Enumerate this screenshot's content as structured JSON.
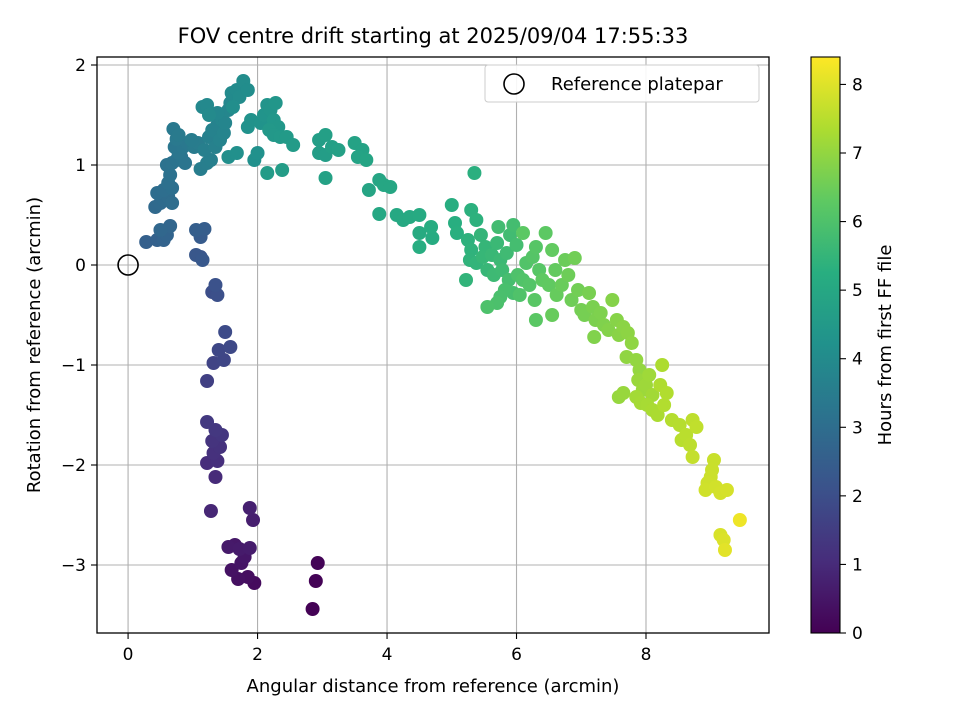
{
  "chart_data": {
    "type": "scatter",
    "title": "FOV centre drift starting at 2025/09/04 17:55:33",
    "xlabel": "Angular distance from reference (arcmin)",
    "ylabel": "Rotation from reference (arcmin)",
    "xlim": [
      -0.48,
      9.9
    ],
    "ylim": [
      -3.68,
      2.08
    ],
    "xticks": [
      "0",
      "2",
      "4",
      "6",
      "8"
    ],
    "yticks": [
      "−3",
      "−2",
      "−1",
      "0",
      "1",
      "2"
    ],
    "grid": true,
    "colorbar": {
      "label": "Hours from first FF file",
      "range": [
        0,
        8.4
      ],
      "ticks": [
        "0",
        "1",
        "2",
        "3",
        "4",
        "5",
        "6",
        "7",
        "8"
      ],
      "colormap": "viridis"
    },
    "legend": {
      "position": "top-right",
      "entries": [
        {
          "name": "Reference platepar",
          "marker": "open-circle"
        }
      ]
    },
    "reference_point": {
      "x": 0,
      "y": 0
    },
    "points": [
      {
        "x": 2.85,
        "y": -3.44,
        "t": 0.02
      },
      {
        "x": 2.9,
        "y": -3.16,
        "t": 0.05
      },
      {
        "x": 2.93,
        "y": -2.98,
        "t": 0.08
      },
      {
        "x": 1.95,
        "y": -3.18,
        "t": 0.25
      },
      {
        "x": 1.85,
        "y": -3.12,
        "t": 0.3
      },
      {
        "x": 1.7,
        "y": -3.14,
        "t": 0.35
      },
      {
        "x": 1.6,
        "y": -3.05,
        "t": 0.4
      },
      {
        "x": 1.75,
        "y": -2.98,
        "t": 0.45
      },
      {
        "x": 1.8,
        "y": -2.92,
        "t": 0.5
      },
      {
        "x": 1.65,
        "y": -2.8,
        "t": 0.55
      },
      {
        "x": 1.55,
        "y": -2.82,
        "t": 0.6
      },
      {
        "x": 1.72,
        "y": -2.84,
        "t": 0.62
      },
      {
        "x": 1.88,
        "y": -2.83,
        "t": 0.65
      },
      {
        "x": 1.93,
        "y": -2.55,
        "t": 0.7
      },
      {
        "x": 1.88,
        "y": -2.43,
        "t": 0.75
      },
      {
        "x": 1.28,
        "y": -2.46,
        "t": 0.9
      },
      {
        "x": 1.35,
        "y": -2.12,
        "t": 1.0
      },
      {
        "x": 1.22,
        "y": -1.98,
        "t": 1.05
      },
      {
        "x": 1.38,
        "y": -1.96,
        "t": 1.1
      },
      {
        "x": 1.32,
        "y": -1.88,
        "t": 1.15
      },
      {
        "x": 1.42,
        "y": -1.82,
        "t": 1.2
      },
      {
        "x": 1.3,
        "y": -1.76,
        "t": 1.25
      },
      {
        "x": 1.45,
        "y": -1.7,
        "t": 1.3
      },
      {
        "x": 1.35,
        "y": -1.65,
        "t": 1.35
      },
      {
        "x": 1.22,
        "y": -1.57,
        "t": 1.4
      },
      {
        "x": 1.22,
        "y": -1.16,
        "t": 1.6
      },
      {
        "x": 1.32,
        "y": -0.98,
        "t": 1.7
      },
      {
        "x": 1.48,
        "y": -0.95,
        "t": 1.75
      },
      {
        "x": 1.4,
        "y": -0.85,
        "t": 1.8
      },
      {
        "x": 1.58,
        "y": -0.82,
        "t": 1.85
      },
      {
        "x": 1.5,
        "y": -0.67,
        "t": 1.9
      },
      {
        "x": 1.3,
        "y": -0.27,
        "t": 2.0
      },
      {
        "x": 1.38,
        "y": -0.3,
        "t": 2.05
      },
      {
        "x": 1.35,
        "y": -0.2,
        "t": 2.1
      },
      {
        "x": 1.12,
        "y": 0.08,
        "t": 2.2
      },
      {
        "x": 1.05,
        "y": 0.1,
        "t": 2.25
      },
      {
        "x": 1.15,
        "y": 0.05,
        "t": 2.3
      },
      {
        "x": 1.12,
        "y": 0.28,
        "t": 2.4
      },
      {
        "x": 1.18,
        "y": 0.36,
        "t": 2.45
      },
      {
        "x": 1.05,
        "y": 0.35,
        "t": 2.5
      },
      {
        "x": 0.28,
        "y": 0.23,
        "t": 2.55
      },
      {
        "x": 0.45,
        "y": 0.25,
        "t": 2.6
      },
      {
        "x": 0.55,
        "y": 0.25,
        "t": 2.65
      },
      {
        "x": 0.6,
        "y": 0.3,
        "t": 2.7
      },
      {
        "x": 0.65,
        "y": 0.39,
        "t": 2.75
      },
      {
        "x": 0.5,
        "y": 0.35,
        "t": 2.78
      },
      {
        "x": 0.42,
        "y": 0.58,
        "t": 2.85
      },
      {
        "x": 0.5,
        "y": 0.62,
        "t": 2.9
      },
      {
        "x": 0.55,
        "y": 0.65,
        "t": 2.92
      },
      {
        "x": 0.62,
        "y": 0.68,
        "t": 2.95
      },
      {
        "x": 0.68,
        "y": 0.62,
        "t": 2.97
      },
      {
        "x": 0.45,
        "y": 0.72,
        "t": 3.0
      },
      {
        "x": 0.55,
        "y": 0.75,
        "t": 3.03
      },
      {
        "x": 0.68,
        "y": 0.77,
        "t": 3.06
      },
      {
        "x": 0.62,
        "y": 0.82,
        "t": 3.1
      },
      {
        "x": 0.65,
        "y": 0.9,
        "t": 3.12
      },
      {
        "x": 0.6,
        "y": 1.0,
        "t": 3.15
      },
      {
        "x": 0.68,
        "y": 1.02,
        "t": 3.18
      },
      {
        "x": 0.75,
        "y": 1.05,
        "t": 3.2
      },
      {
        "x": 0.82,
        "y": 1.08,
        "t": 3.22
      },
      {
        "x": 0.88,
        "y": 1.02,
        "t": 3.25
      },
      {
        "x": 0.78,
        "y": 1.12,
        "t": 3.28
      },
      {
        "x": 0.72,
        "y": 1.18,
        "t": 3.3
      },
      {
        "x": 0.85,
        "y": 1.18,
        "t": 3.32
      },
      {
        "x": 0.92,
        "y": 1.22,
        "t": 3.35
      },
      {
        "x": 0.75,
        "y": 1.26,
        "t": 3.38
      },
      {
        "x": 0.7,
        "y": 1.36,
        "t": 3.4
      },
      {
        "x": 0.78,
        "y": 1.3,
        "t": 3.42
      },
      {
        "x": 1.02,
        "y": 1.18,
        "t": 3.45
      },
      {
        "x": 1.08,
        "y": 1.22,
        "t": 3.48
      },
      {
        "x": 0.98,
        "y": 1.25,
        "t": 3.5
      },
      {
        "x": 1.12,
        "y": 0.96,
        "t": 3.52
      },
      {
        "x": 1.22,
        "y": 1.02,
        "t": 3.55
      },
      {
        "x": 1.28,
        "y": 1.05,
        "t": 3.58
      },
      {
        "x": 1.18,
        "y": 1.15,
        "t": 3.6
      },
      {
        "x": 1.25,
        "y": 1.28,
        "t": 3.62
      },
      {
        "x": 1.35,
        "y": 1.18,
        "t": 3.65
      },
      {
        "x": 1.3,
        "y": 1.35,
        "t": 3.68
      },
      {
        "x": 1.38,
        "y": 1.4,
        "t": 3.7
      },
      {
        "x": 1.42,
        "y": 1.25,
        "t": 3.72
      },
      {
        "x": 1.48,
        "y": 1.32,
        "t": 3.75
      },
      {
        "x": 1.45,
        "y": 1.45,
        "t": 3.78
      },
      {
        "x": 1.5,
        "y": 1.42,
        "t": 3.8
      },
      {
        "x": 1.55,
        "y": 1.55,
        "t": 3.82
      },
      {
        "x": 1.58,
        "y": 1.62,
        "t": 3.85
      },
      {
        "x": 1.38,
        "y": 1.52,
        "t": 3.87
      },
      {
        "x": 1.15,
        "y": 1.58,
        "t": 3.9
      },
      {
        "x": 1.22,
        "y": 1.6,
        "t": 3.92
      },
      {
        "x": 1.25,
        "y": 1.5,
        "t": 3.95
      },
      {
        "x": 1.6,
        "y": 1.72,
        "t": 3.97
      },
      {
        "x": 1.68,
        "y": 1.75,
        "t": 4.0
      },
      {
        "x": 1.72,
        "y": 1.68,
        "t": 4.02
      },
      {
        "x": 1.78,
        "y": 1.84,
        "t": 4.05
      },
      {
        "x": 1.85,
        "y": 1.75,
        "t": 4.07
      },
      {
        "x": 1.62,
        "y": 1.58,
        "t": 4.1
      },
      {
        "x": 1.55,
        "y": 1.08,
        "t": 4.12
      },
      {
        "x": 1.68,
        "y": 1.12,
        "t": 4.15
      },
      {
        "x": 1.95,
        "y": 1.05,
        "t": 4.17
      },
      {
        "x": 2.0,
        "y": 1.12,
        "t": 4.2
      },
      {
        "x": 1.85,
        "y": 1.38,
        "t": 4.22
      },
      {
        "x": 1.9,
        "y": 1.45,
        "t": 4.25
      },
      {
        "x": 2.05,
        "y": 1.42,
        "t": 4.27
      },
      {
        "x": 2.1,
        "y": 1.5,
        "t": 4.3
      },
      {
        "x": 2.15,
        "y": 1.6,
        "t": 4.32
      },
      {
        "x": 2.2,
        "y": 1.55,
        "t": 4.35
      },
      {
        "x": 2.28,
        "y": 1.62,
        "t": 4.37
      },
      {
        "x": 2.25,
        "y": 1.45,
        "t": 4.4
      },
      {
        "x": 2.32,
        "y": 1.38,
        "t": 4.42
      },
      {
        "x": 2.18,
        "y": 1.35,
        "t": 4.45
      },
      {
        "x": 2.25,
        "y": 1.3,
        "t": 4.47
      },
      {
        "x": 2.35,
        "y": 1.28,
        "t": 4.5
      },
      {
        "x": 2.45,
        "y": 1.28,
        "t": 4.52
      },
      {
        "x": 2.55,
        "y": 1.2,
        "t": 4.55
      },
      {
        "x": 2.15,
        "y": 0.92,
        "t": 4.57
      },
      {
        "x": 2.38,
        "y": 0.95,
        "t": 4.6
      },
      {
        "x": 2.95,
        "y": 1.12,
        "t": 4.62
      },
      {
        "x": 3.05,
        "y": 1.1,
        "t": 4.65
      },
      {
        "x": 2.95,
        "y": 1.25,
        "t": 4.67
      },
      {
        "x": 3.05,
        "y": 1.3,
        "t": 4.7
      },
      {
        "x": 3.15,
        "y": 1.18,
        "t": 4.72
      },
      {
        "x": 3.25,
        "y": 1.15,
        "t": 4.75
      },
      {
        "x": 3.05,
        "y": 0.87,
        "t": 4.77
      },
      {
        "x": 3.5,
        "y": 1.22,
        "t": 4.8
      },
      {
        "x": 3.62,
        "y": 1.15,
        "t": 4.82
      },
      {
        "x": 3.55,
        "y": 1.08,
        "t": 4.85
      },
      {
        "x": 3.68,
        "y": 1.05,
        "t": 4.87
      },
      {
        "x": 3.72,
        "y": 0.75,
        "t": 4.9
      },
      {
        "x": 3.88,
        "y": 0.85,
        "t": 4.92
      },
      {
        "x": 3.95,
        "y": 0.8,
        "t": 4.95
      },
      {
        "x": 4.05,
        "y": 0.78,
        "t": 4.97
      },
      {
        "x": 3.88,
        "y": 0.51,
        "t": 5.0
      },
      {
        "x": 4.15,
        "y": 0.5,
        "t": 5.02
      },
      {
        "x": 4.25,
        "y": 0.45,
        "t": 5.05
      },
      {
        "x": 4.35,
        "y": 0.48,
        "t": 5.07
      },
      {
        "x": 4.5,
        "y": 0.5,
        "t": 5.1
      },
      {
        "x": 4.5,
        "y": 0.32,
        "t": 5.12
      },
      {
        "x": 4.7,
        "y": 0.27,
        "t": 5.15
      },
      {
        "x": 4.68,
        "y": 0.38,
        "t": 5.17
      },
      {
        "x": 4.5,
        "y": 0.18,
        "t": 5.2
      },
      {
        "x": 5.0,
        "y": 0.6,
        "t": 5.22
      },
      {
        "x": 5.05,
        "y": 0.42,
        "t": 5.25
      },
      {
        "x": 5.08,
        "y": 0.32,
        "t": 5.27
      },
      {
        "x": 5.35,
        "y": 0.92,
        "t": 5.3
      },
      {
        "x": 5.3,
        "y": 0.55,
        "t": 5.32
      },
      {
        "x": 5.38,
        "y": 0.45,
        "t": 5.35
      },
      {
        "x": 5.25,
        "y": 0.25,
        "t": 5.37
      },
      {
        "x": 5.3,
        "y": 0.15,
        "t": 5.4
      },
      {
        "x": 5.28,
        "y": 0.05,
        "t": 5.42
      },
      {
        "x": 5.22,
        "y": -0.15,
        "t": 5.45
      },
      {
        "x": 5.38,
        "y": 0.02,
        "t": 5.47
      },
      {
        "x": 5.45,
        "y": 0.3,
        "t": 5.5
      },
      {
        "x": 5.52,
        "y": 0.18,
        "t": 5.52
      },
      {
        "x": 5.48,
        "y": 0.08,
        "t": 5.55
      },
      {
        "x": 5.55,
        "y": -0.05,
        "t": 5.57
      },
      {
        "x": 5.62,
        "y": 0.1,
        "t": 5.6
      },
      {
        "x": 5.7,
        "y": 0.22,
        "t": 5.62
      },
      {
        "x": 5.75,
        "y": 0.05,
        "t": 5.65
      },
      {
        "x": 5.65,
        "y": -0.1,
        "t": 5.67
      },
      {
        "x": 5.78,
        "y": -0.05,
        "t": 5.7
      },
      {
        "x": 5.85,
        "y": 0.12,
        "t": 5.72
      },
      {
        "x": 5.9,
        "y": 0.3,
        "t": 5.75
      },
      {
        "x": 5.72,
        "y": 0.38,
        "t": 5.77
      },
      {
        "x": 5.95,
        "y": 0.4,
        "t": 5.8
      },
      {
        "x": 6.0,
        "y": 0.2,
        "t": 5.82
      },
      {
        "x": 5.88,
        "y": -0.15,
        "t": 5.85
      },
      {
        "x": 5.95,
        "y": -0.28,
        "t": 5.87
      },
      {
        "x": 5.82,
        "y": -0.25,
        "t": 5.9
      },
      {
        "x": 5.75,
        "y": -0.32,
        "t": 5.92
      },
      {
        "x": 5.7,
        "y": -0.38,
        "t": 5.95
      },
      {
        "x": 5.55,
        "y": -0.42,
        "t": 5.97
      },
      {
        "x": 6.02,
        "y": -0.1,
        "t": 6.0
      },
      {
        "x": 6.05,
        "y": -0.3,
        "t": 6.02
      },
      {
        "x": 6.1,
        "y": -0.15,
        "t": 6.05
      },
      {
        "x": 6.15,
        "y": 0.02,
        "t": 6.07
      },
      {
        "x": 6.2,
        "y": -0.2,
        "t": 6.1
      },
      {
        "x": 6.25,
        "y": 0.08,
        "t": 6.12
      },
      {
        "x": 6.3,
        "y": 0.18,
        "t": 6.15
      },
      {
        "x": 6.35,
        "y": -0.05,
        "t": 6.17
      },
      {
        "x": 6.28,
        "y": -0.35,
        "t": 6.2
      },
      {
        "x": 6.3,
        "y": -0.55,
        "t": 6.22
      },
      {
        "x": 6.1,
        "y": 0.32,
        "t": 6.25
      },
      {
        "x": 6.45,
        "y": 0.32,
        "t": 6.27
      },
      {
        "x": 6.4,
        "y": -0.15,
        "t": 6.3
      },
      {
        "x": 6.5,
        "y": -0.2,
        "t": 6.32
      },
      {
        "x": 6.55,
        "y": 0.15,
        "t": 6.35
      },
      {
        "x": 6.6,
        "y": -0.05,
        "t": 6.37
      },
      {
        "x": 6.62,
        "y": -0.3,
        "t": 6.4
      },
      {
        "x": 6.55,
        "y": -0.5,
        "t": 6.42
      },
      {
        "x": 6.7,
        "y": -0.2,
        "t": 6.45
      },
      {
        "x": 6.75,
        "y": 0.05,
        "t": 6.47
      },
      {
        "x": 6.8,
        "y": -0.1,
        "t": 6.5
      },
      {
        "x": 6.85,
        "y": -0.35,
        "t": 6.52
      },
      {
        "x": 6.9,
        "y": 0.07,
        "t": 6.55
      },
      {
        "x": 6.95,
        "y": -0.25,
        "t": 6.57
      },
      {
        "x": 7.0,
        "y": -0.45,
        "t": 6.6
      },
      {
        "x": 7.05,
        "y": -0.5,
        "t": 6.62
      },
      {
        "x": 7.12,
        "y": -0.28,
        "t": 6.65
      },
      {
        "x": 7.18,
        "y": -0.42,
        "t": 6.67
      },
      {
        "x": 7.22,
        "y": -0.55,
        "t": 6.7
      },
      {
        "x": 7.3,
        "y": -0.48,
        "t": 6.72
      },
      {
        "x": 7.35,
        "y": -0.6,
        "t": 6.75
      },
      {
        "x": 7.2,
        "y": -0.72,
        "t": 6.77
      },
      {
        "x": 7.42,
        "y": -0.65,
        "t": 6.8
      },
      {
        "x": 7.48,
        "y": -0.35,
        "t": 6.82
      },
      {
        "x": 7.55,
        "y": -0.55,
        "t": 6.85
      },
      {
        "x": 7.58,
        "y": -0.7,
        "t": 6.87
      },
      {
        "x": 7.65,
        "y": -0.62,
        "t": 6.9
      },
      {
        "x": 7.72,
        "y": -0.68,
        "t": 6.92
      },
      {
        "x": 7.78,
        "y": -0.78,
        "t": 6.95
      },
      {
        "x": 7.7,
        "y": -0.92,
        "t": 6.97
      },
      {
        "x": 7.85,
        "y": -0.95,
        "t": 7.0
      },
      {
        "x": 7.9,
        "y": -1.05,
        "t": 7.02
      },
      {
        "x": 7.58,
        "y": -1.32,
        "t": 7.05
      },
      {
        "x": 7.65,
        "y": -1.28,
        "t": 7.07
      },
      {
        "x": 7.88,
        "y": -1.15,
        "t": 7.1
      },
      {
        "x": 7.95,
        "y": -1.25,
        "t": 7.12
      },
      {
        "x": 8.0,
        "y": -1.2,
        "t": 7.15
      },
      {
        "x": 8.05,
        "y": -1.1,
        "t": 7.17
      },
      {
        "x": 8.1,
        "y": -1.3,
        "t": 7.2
      },
      {
        "x": 7.85,
        "y": -1.32,
        "t": 7.22
      },
      {
        "x": 7.92,
        "y": -1.38,
        "t": 7.25
      },
      {
        "x": 8.02,
        "y": -1.4,
        "t": 7.27
      },
      {
        "x": 8.1,
        "y": -1.45,
        "t": 7.3
      },
      {
        "x": 8.18,
        "y": -1.5,
        "t": 7.32
      },
      {
        "x": 8.25,
        "y": -1.0,
        "t": 7.35
      },
      {
        "x": 8.22,
        "y": -1.2,
        "t": 7.37
      },
      {
        "x": 8.32,
        "y": -1.28,
        "t": 7.4
      },
      {
        "x": 8.28,
        "y": -1.4,
        "t": 7.42
      },
      {
        "x": 8.4,
        "y": -1.55,
        "t": 7.45
      },
      {
        "x": 8.52,
        "y": -1.6,
        "t": 7.47
      },
      {
        "x": 8.55,
        "y": -1.75,
        "t": 7.5
      },
      {
        "x": 8.62,
        "y": -1.7,
        "t": 7.52
      },
      {
        "x": 8.68,
        "y": -1.8,
        "t": 7.55
      },
      {
        "x": 8.72,
        "y": -1.55,
        "t": 7.57
      },
      {
        "x": 8.78,
        "y": -1.62,
        "t": 7.6
      },
      {
        "x": 8.72,
        "y": -1.92,
        "t": 7.65
      },
      {
        "x": 9.05,
        "y": -1.95,
        "t": 7.7
      },
      {
        "x": 9.02,
        "y": -2.05,
        "t": 7.72
      },
      {
        "x": 9.0,
        "y": -2.12,
        "t": 7.75
      },
      {
        "x": 8.95,
        "y": -2.18,
        "t": 7.77
      },
      {
        "x": 8.92,
        "y": -2.25,
        "t": 7.8
      },
      {
        "x": 9.08,
        "y": -2.22,
        "t": 7.82
      },
      {
        "x": 9.15,
        "y": -2.28,
        "t": 7.85
      },
      {
        "x": 9.25,
        "y": -2.25,
        "t": 7.87
      },
      {
        "x": 9.15,
        "y": -2.7,
        "t": 7.9
      },
      {
        "x": 9.2,
        "y": -2.75,
        "t": 7.95
      },
      {
        "x": 9.22,
        "y": -2.85,
        "t": 8.05
      },
      {
        "x": 9.45,
        "y": -2.55,
        "t": 8.2
      }
    ]
  }
}
